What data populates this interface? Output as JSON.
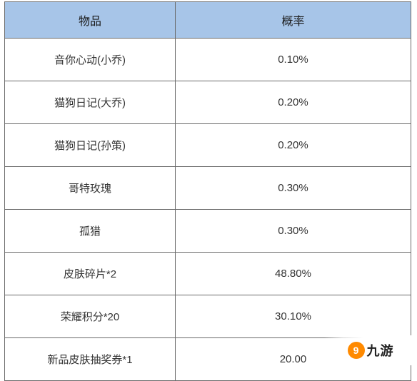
{
  "table": {
    "header_bg": "#a7c5e8",
    "border_color": "#6a6a6a",
    "cell_bg": "#ffffff",
    "header_fontsize": 16,
    "cell_fontsize": 15,
    "columns": [
      {
        "key": "item",
        "label": "物品",
        "width_pct": 42
      },
      {
        "key": "rate",
        "label": "概率",
        "width_pct": 58
      }
    ],
    "rows": [
      {
        "item": "音你心动(小乔)",
        "rate": "0.10%"
      },
      {
        "item": "猫狗日记(大乔)",
        "rate": "0.20%"
      },
      {
        "item": "猫狗日记(孙策)",
        "rate": "0.20%"
      },
      {
        "item": "哥特玫瑰",
        "rate": "0.30%"
      },
      {
        "item": "孤猎",
        "rate": "0.30%"
      },
      {
        "item": "皮肤碎片*2",
        "rate": "48.80%"
      },
      {
        "item": "荣耀积分*20",
        "rate": "30.10%"
      },
      {
        "item": "新品皮肤抽奖券*1",
        "rate": "20.00"
      }
    ]
  },
  "watermark": {
    "icon_char": "9",
    "icon_bg": "#ff8a00",
    "text": "九游"
  }
}
